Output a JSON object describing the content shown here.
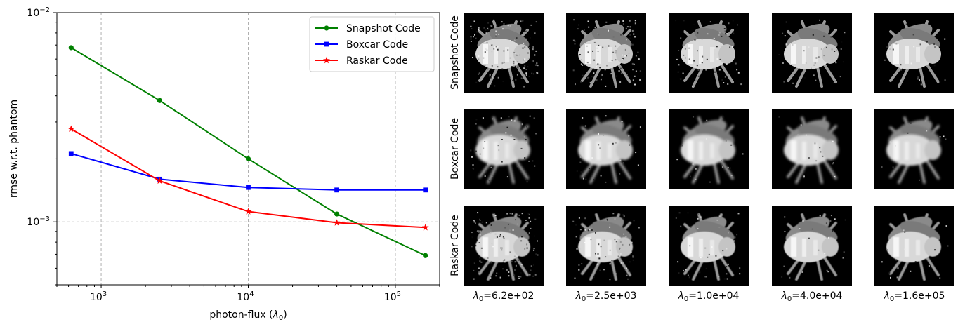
{
  "chart_data": [
    {
      "type": "line",
      "xscale": "log",
      "yscale": "log",
      "xlabel": "photon-flux (λ0)",
      "ylabel": "rmse w.r.t. phantom",
      "xlim": [
        500,
        200000
      ],
      "ylim": [
        0.0005,
        0.01
      ],
      "x_ticks": [
        "10^3",
        "10^4",
        "10^5"
      ],
      "y_ticks": [
        "10^-3",
        "10^-2"
      ],
      "grid": true,
      "legend_position": "top-right",
      "x": [
        625,
        2500,
        10000,
        40000,
        160000
      ],
      "series": [
        {
          "name": "Snapshot Code",
          "color": "#008000",
          "marker": "circle",
          "values": [
            0.0068,
            0.0038,
            0.002,
            0.00109,
            0.00069
          ]
        },
        {
          "name": "Boxcar Code",
          "color": "#0000ff",
          "marker": "square",
          "values": [
            0.00212,
            0.0016,
            0.00146,
            0.00142,
            0.00142
          ]
        },
        {
          "name": "Raskar Code",
          "color": "#ff0000",
          "marker": "star",
          "values": [
            0.00278,
            0.00157,
            0.00112,
            0.00099,
            0.00094
          ]
        }
      ]
    },
    {
      "type": "image-grid",
      "rows": [
        "Snapshot Code",
        "Boxcar Code",
        "Raskar Code"
      ],
      "columns": [
        {
          "lambda_label": "λ",
          "sub": "0",
          "value_text": "=6.2e+02"
        },
        {
          "lambda_label": "λ",
          "sub": "0",
          "value_text": "=2.5e+03"
        },
        {
          "lambda_label": "λ",
          "sub": "0",
          "value_text": "=1.0e+04"
        },
        {
          "lambda_label": "λ",
          "sub": "0",
          "value_text": "=4.0e+04"
        },
        {
          "lambda_label": "λ",
          "sub": "0",
          "value_text": "=1.6e+05"
        }
      ],
      "noise_levels": [
        [
          0.55,
          0.4,
          0.25,
          0.15,
          0.1
        ],
        [
          0.2,
          0.12,
          0.08,
          0.06,
          0.05
        ],
        [
          0.45,
          0.3,
          0.18,
          0.1,
          0.07
        ]
      ],
      "blur_levels": [
        [
          0.0,
          0.0,
          0.0,
          0.0,
          0.0
        ],
        [
          1.0,
          1.0,
          1.0,
          1.0,
          1.0
        ],
        [
          0.2,
          0.2,
          0.2,
          0.2,
          0.2
        ]
      ]
    }
  ],
  "labels": {
    "xlabel_main": "photon-flux (",
    "xlabel_lambda": "λ",
    "xlabel_sub": "0",
    "xlabel_end": ")",
    "ylabel": "rmse w.r.t. phantom",
    "xtick_base": "10",
    "xtick_exps": [
      "3",
      "4",
      "5"
    ],
    "ytick_base": "10",
    "ytick_exps": [
      "−3",
      "−2"
    ]
  }
}
